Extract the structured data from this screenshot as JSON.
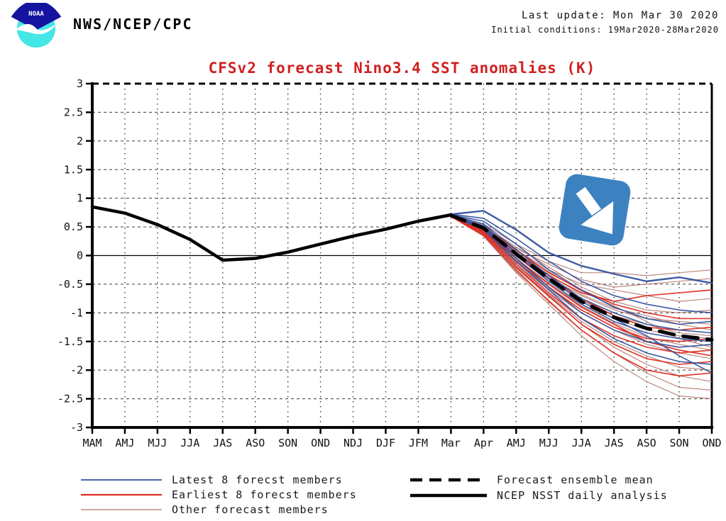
{
  "header": {
    "agency": "NWS/NCEP/CPC",
    "logo_text": "NOAA",
    "last_update": "Last update: Mon Mar 30 2020",
    "initial_conditions": "Initial conditions: 19Mar2020-28Mar2020"
  },
  "chart_data": {
    "type": "line",
    "title": "CFSv2 forecast Nino3.4 SST anomalies (K)",
    "title_color": "#d02020",
    "xlabel": "",
    "ylabel": "",
    "ylim": [
      -3,
      3
    ],
    "ytick_step": 0.5,
    "ytick_labels": [
      "3",
      "2.5",
      "2",
      "1.5",
      "1",
      "0.5",
      "0",
      "-0.5",
      "-1",
      "-1.5",
      "-2",
      "-2.5",
      "-3"
    ],
    "categories": [
      "MAM",
      "AMJ",
      "MJJ",
      "JJA",
      "JAS",
      "ASO",
      "SON",
      "OND",
      "NDJ",
      "DJF",
      "JFM",
      "Mar",
      "Apr",
      "AMJ",
      "MJJ",
      "JJA",
      "JAS",
      "ASO",
      "SON",
      "OND"
    ],
    "grid": true,
    "legend_position": "bottom",
    "series": {
      "observation": {
        "name": "NCEP NSST daily analysis",
        "color": "#000000",
        "start_index": 0,
        "values": [
          0.85,
          0.74,
          0.54,
          0.28,
          -0.08,
          -0.05,
          0.06,
          0.2,
          0.34,
          0.46,
          0.6,
          0.71
        ]
      },
      "ensemble_mean": {
        "name": "Forecast ensemble mean",
        "color": "#000000",
        "dashed": true,
        "start_index": 11,
        "values": [
          0.7,
          0.48,
          0.03,
          -0.4,
          -0.8,
          -1.08,
          -1.27,
          -1.4,
          -1.47
        ]
      },
      "members": {
        "start_index": 11,
        "latest8": {
          "name": "Latest 8 forecst members",
          "color": "#33519e",
          "lines": [
            [
              0.72,
              0.78,
              0.45,
              0.05,
              -0.18,
              -0.32,
              -0.45,
              -0.38,
              -0.48
            ],
            [
              0.72,
              0.65,
              0.3,
              -0.1,
              -0.45,
              -0.7,
              -0.85,
              -0.95,
              -1.0
            ],
            [
              0.71,
              0.6,
              0.2,
              -0.25,
              -0.6,
              -0.9,
              -1.1,
              -1.2,
              -1.15
            ],
            [
              0.71,
              0.55,
              0.1,
              -0.35,
              -0.75,
              -1.0,
              -1.2,
              -1.3,
              -1.35
            ],
            [
              0.7,
              0.5,
              0.0,
              -0.45,
              -0.85,
              -1.15,
              -1.35,
              -1.45,
              -1.5
            ],
            [
              0.7,
              0.48,
              -0.05,
              -0.55,
              -1.0,
              -1.3,
              -1.5,
              -1.6,
              -1.55
            ],
            [
              0.69,
              0.45,
              -0.1,
              -0.6,
              -1.1,
              -1.45,
              -1.7,
              -1.85,
              -1.9
            ],
            [
              0.69,
              0.52,
              0.05,
              -0.4,
              -0.8,
              -1.1,
              -1.4,
              -1.75,
              -2.05
            ]
          ]
        },
        "earliest8": {
          "name": "Earliest 8 forecst members",
          "color": "#dd2e24",
          "lines": [
            [
              0.7,
              0.5,
              0.1,
              -0.3,
              -0.6,
              -0.85,
              -1.0,
              -1.1,
              -1.1
            ],
            [
              0.7,
              0.45,
              0.0,
              -0.4,
              -0.75,
              -1.05,
              -1.25,
              -1.3,
              -1.25
            ],
            [
              0.69,
              0.42,
              -0.1,
              -0.55,
              -0.95,
              -1.25,
              -1.45,
              -1.5,
              -1.45
            ],
            [
              0.69,
              0.4,
              -0.15,
              -0.65,
              -1.1,
              -1.4,
              -1.6,
              -1.7,
              -1.65
            ],
            [
              0.68,
              0.38,
              -0.2,
              -0.7,
              -1.2,
              -1.55,
              -1.8,
              -1.9,
              -1.85
            ],
            [
              0.68,
              0.35,
              -0.25,
              -0.8,
              -1.3,
              -1.7,
              -2.0,
              -2.1,
              -2.05
            ],
            [
              0.7,
              0.48,
              0.05,
              -0.35,
              -0.65,
              -0.8,
              -0.7,
              -0.65,
              -0.6
            ],
            [
              0.69,
              0.44,
              -0.05,
              -0.5,
              -0.9,
              -1.2,
              -1.5,
              -1.65,
              -1.75
            ]
          ]
        },
        "other": {
          "name": "Other forecast members",
          "color": "#b1776c",
          "lines": [
            [
              0.71,
              0.55,
              0.2,
              -0.1,
              -0.3,
              -0.3,
              -0.35,
              -0.3,
              -0.25
            ],
            [
              0.7,
              0.5,
              0.1,
              -0.25,
              -0.5,
              -0.6,
              -0.7,
              -0.8,
              -0.75
            ],
            [
              0.7,
              0.47,
              0.02,
              -0.38,
              -0.7,
              -0.95,
              -1.1,
              -1.15,
              -1.2
            ],
            [
              0.69,
              0.43,
              -0.08,
              -0.5,
              -0.85,
              -1.1,
              -1.3,
              -1.4,
              -1.45
            ],
            [
              0.69,
              0.4,
              -0.15,
              -0.6,
              -1.0,
              -1.3,
              -1.55,
              -1.7,
              -1.8
            ],
            [
              0.68,
              0.37,
              -0.22,
              -0.72,
              -1.2,
              -1.6,
              -1.9,
              -2.1,
              -2.2
            ],
            [
              0.68,
              0.34,
              -0.3,
              -0.85,
              -1.4,
              -1.85,
              -2.2,
              -2.45,
              -2.5
            ],
            [
              0.7,
              0.45,
              -0.02,
              -0.42,
              -0.78,
              -1.05,
              -1.2,
              -1.35,
              -1.4
            ],
            [
              0.7,
              0.52,
              0.15,
              -0.2,
              -0.55,
              -0.8,
              -0.95,
              -1.0,
              -0.95
            ],
            [
              0.69,
              0.41,
              -0.12,
              -0.58,
              -0.95,
              -1.25,
              -1.5,
              -1.6,
              -1.55
            ],
            [
              0.69,
              0.46,
              0.05,
              -0.33,
              -0.68,
              -0.92,
              -1.05,
              -1.2,
              -1.3
            ],
            [
              0.68,
              0.39,
              -0.18,
              -0.68,
              -1.15,
              -1.5,
              -1.75,
              -1.95,
              -2.0
            ],
            [
              0.7,
              0.49,
              0.08,
              -0.28,
              -0.62,
              -0.88,
              -1.15,
              -1.45,
              -1.6
            ],
            [
              0.69,
              0.36,
              -0.28,
              -0.78,
              -1.3,
              -1.7,
              -2.05,
              -2.3,
              -2.35
            ],
            [
              0.71,
              0.53,
              0.12,
              -0.15,
              -0.42,
              -0.55,
              -0.5,
              -0.45,
              -0.4
            ],
            [
              0.68,
              0.44,
              -0.05,
              -0.48,
              -0.88,
              -1.18,
              -1.42,
              -1.55,
              -1.65
            ]
          ]
        }
      }
    }
  },
  "legend": {
    "left": [
      {
        "label": "Latest 8 forecst members",
        "color": "#33519e"
      },
      {
        "label": "Earliest 8 forecst members",
        "color": "#dd2e24"
      },
      {
        "label": "Other forecast members",
        "color": "#b1776c"
      }
    ],
    "right": [
      {
        "label": "Forecast ensemble mean",
        "color": "#000000",
        "style": "dashed"
      },
      {
        "label": "NCEP NSST daily analysis",
        "color": "#000000",
        "style": "solid"
      }
    ]
  },
  "annotation": {
    "badge_color": "#3d82c0",
    "arrow_direction": "down-right"
  }
}
